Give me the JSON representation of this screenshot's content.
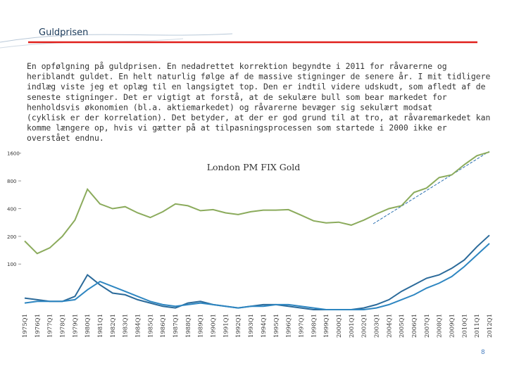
{
  "title": "Guldprisen",
  "text_lines": [
    "En opfølgning på guldprisen. En nedadrettet korrektion begyndte i 2011 for råvarerne og",
    "heriblandt guldet. En helt naturlig følge af de massive stigninger de senere år. I mit tidligere",
    "indlæg viste jeg et oplæg til en langsigtet top. Den er indtil videre udskudt, som afledt af de",
    "seneste stigninger. Det er vigtigt at forstå, at de sekulære bull som bear markedet for",
    "henholdsvis økonomien (bl.a. aktiemarkedet) og råvarerne bevæger sig sekulært modsat",
    "(cyklisk er der korrelation). Det betyder, at der er god grund til at tro, at råvaremarkedet kan",
    "komme længere op, hvis vi gætter på at tilpasningsprocessen som startede i 2000 ikke er",
    "overstået endnu."
  ],
  "page_number": "8",
  "chart_data": {
    "type": "line",
    "title": "London PM FIX Gold",
    "categories": [
      "1975Q1",
      "1976Q1",
      "1977Q1",
      "1978Q1",
      "1979Q1",
      "1980Q1",
      "1981Q1",
      "1982Q1",
      "1983Q1",
      "1984Q1",
      "1985Q1",
      "1986Q1",
      "1987Q1",
      "1988Q1",
      "1989Q1",
      "1990Q1",
      "1991Q1",
      "1992Q1",
      "1993Q1",
      "1994Q1",
      "1995Q1",
      "1996Q1",
      "1997Q1",
      "1998Q1",
      "1999Q1",
      "2000Q1",
      "2001Q1",
      "2002Q1",
      "2003Q1",
      "2004Q1",
      "2005Q1",
      "2006Q1",
      "2007Q1",
      "2008Q1",
      "2009Q1",
      "2010Q1",
      "2011Q1",
      "2012Q1"
    ],
    "log_y": true,
    "ylim": [
      32,
      2000
    ],
    "yticks": [
      100,
      200,
      400,
      800,
      1600
    ],
    "y2lim": [
      0,
      100
    ],
    "series": [
      {
        "color": "#8bab5c",
        "values": [
          178,
          130,
          150,
          200,
          300,
          650,
          450,
          400,
          420,
          360,
          320,
          370,
          450,
          430,
          380,
          390,
          360,
          345,
          370,
          385,
          385,
          390,
          340,
          295,
          280,
          285,
          265,
          300,
          350,
          400,
          430,
          600,
          670,
          870,
          930,
          1200,
          1500,
          1650
        ]
      },
      {
        "color": "#2b6a9a",
        "axis": "y2",
        "values": [
          7,
          6,
          5,
          5,
          8,
          21,
          15,
          10,
          9,
          6,
          4,
          2,
          1,
          4,
          5,
          3,
          2,
          1,
          2,
          3,
          3,
          2,
          1,
          0,
          0,
          0,
          0,
          1,
          3,
          6,
          11,
          15,
          19,
          21,
          25,
          30,
          38,
          45
        ]
      },
      {
        "color": "#2e86c1",
        "axis": "y2",
        "values": [
          4,
          5,
          5,
          5,
          6,
          12,
          17,
          14,
          11,
          8,
          5,
          3,
          2,
          3,
          4,
          3,
          2,
          1,
          2,
          2,
          3,
          3,
          2,
          1,
          0,
          0,
          0,
          0,
          1,
          3,
          6,
          9,
          13,
          16,
          20,
          26,
          33,
          40
        ]
      }
    ]
  }
}
